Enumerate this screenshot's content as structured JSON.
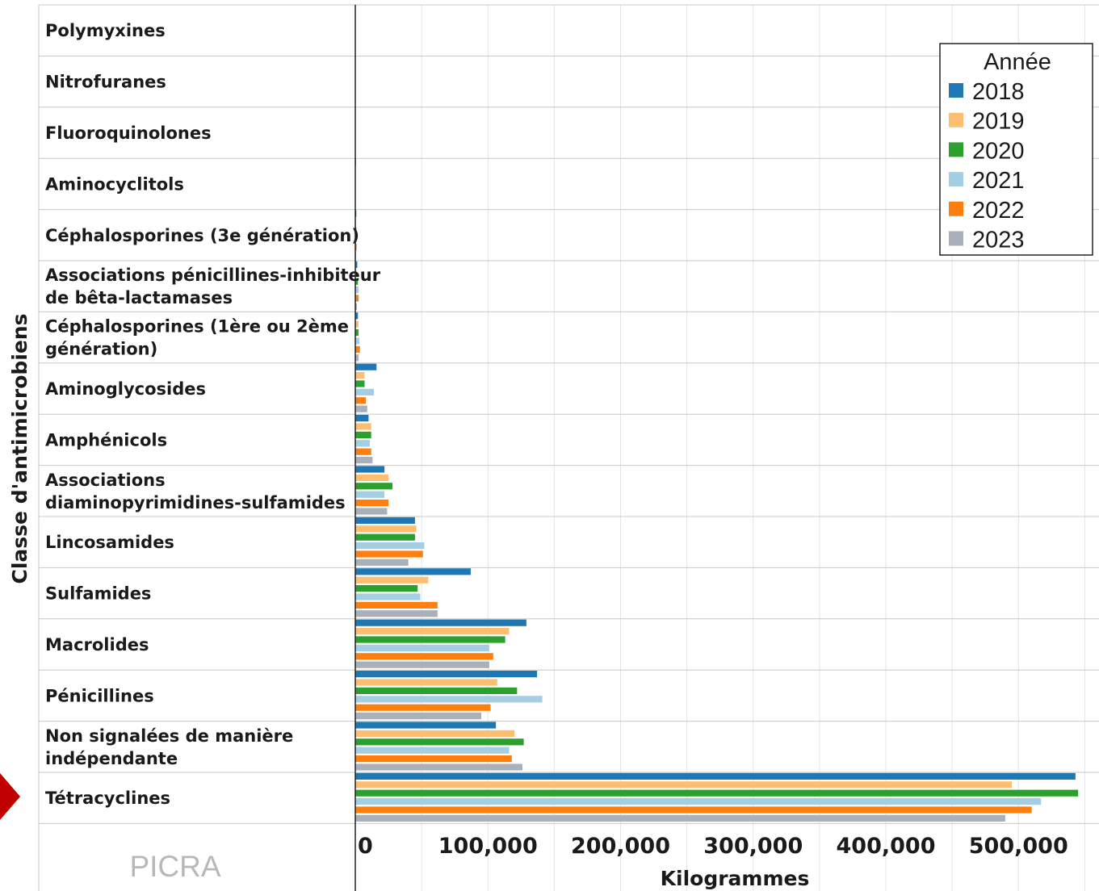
{
  "chart_data": {
    "type": "bar",
    "orientation": "horizontal",
    "xlabel": "Kilogrammes",
    "ylabel": "Classe d'antimicrobiens",
    "xlim": [
      0,
      560000
    ],
    "xticks": [
      "0",
      "100,000",
      "200,000",
      "300,000",
      "400,000",
      "500,000"
    ],
    "xtick_values": [
      0,
      100000,
      200000,
      300000,
      400000,
      500000
    ],
    "grid": true,
    "legend": {
      "title": "Année",
      "position": "top-right"
    },
    "watermark": "PICRA",
    "highlighted_category": "Tétracyclines",
    "categories": [
      {
        "lines": [
          "Polymyxines"
        ]
      },
      {
        "lines": [
          "Nitrofuranes"
        ]
      },
      {
        "lines": [
          "Fluoroquinolones"
        ]
      },
      {
        "lines": [
          "Aminocyclitols"
        ]
      },
      {
        "lines": [
          "Céphalosporines (3e génération)"
        ]
      },
      {
        "lines": [
          "Associations pénicillines-inhibiteur",
          "de bêta-lactamases"
        ]
      },
      {
        "lines": [
          "Céphalosporines (1ère ou 2ème",
          "génération)"
        ]
      },
      {
        "lines": [
          "Aminoglycosides"
        ]
      },
      {
        "lines": [
          "Amphénicols"
        ]
      },
      {
        "lines": [
          "Associations",
          "diaminopyrimidines-sulfamides"
        ]
      },
      {
        "lines": [
          "Lincosamides"
        ]
      },
      {
        "lines": [
          "Sulfamides"
        ]
      },
      {
        "lines": [
          "Macrolides"
        ]
      },
      {
        "lines": [
          "Pénicillines"
        ]
      },
      {
        "lines": [
          "Non signalées de manière",
          "indépendante"
        ]
      },
      {
        "lines": [
          "Tétracyclines"
        ]
      }
    ],
    "series": [
      {
        "name": "2018",
        "color": "#1f77b4",
        "values": [
          0,
          0,
          0,
          500,
          800,
          1500,
          2000,
          16000,
          10000,
          22000,
          45000,
          87000,
          129000,
          137000,
          106000,
          543000
        ]
      },
      {
        "name": "2019",
        "color": "#fdbf6f",
        "values": [
          0,
          0,
          0,
          300,
          500,
          1000,
          2500,
          7000,
          12000,
          25000,
          46000,
          55000,
          116000,
          107000,
          120000,
          495000
        ]
      },
      {
        "name": "2020",
        "color": "#2ca02c",
        "values": [
          0,
          0,
          0,
          200,
          800,
          2000,
          2500,
          7000,
          12000,
          28000,
          45000,
          47000,
          113000,
          122000,
          127000,
          545000
        ]
      },
      {
        "name": "2021",
        "color": "#a6cee3",
        "values": [
          0,
          0,
          0,
          200,
          500,
          2500,
          3000,
          14000,
          11000,
          22000,
          52000,
          49000,
          101000,
          141000,
          116000,
          517000
        ]
      },
      {
        "name": "2022",
        "color": "#ff7f0e",
        "values": [
          0,
          0,
          0,
          300,
          1000,
          2500,
          3500,
          8000,
          12000,
          25000,
          51000,
          62000,
          104000,
          102000,
          118000,
          510000
        ]
      },
      {
        "name": "2023",
        "color": "#a9b0b9",
        "values": [
          0,
          0,
          0,
          200,
          500,
          1200,
          2500,
          9000,
          13000,
          24000,
          40000,
          62000,
          101000,
          95000,
          126000,
          490000
        ]
      }
    ]
  }
}
